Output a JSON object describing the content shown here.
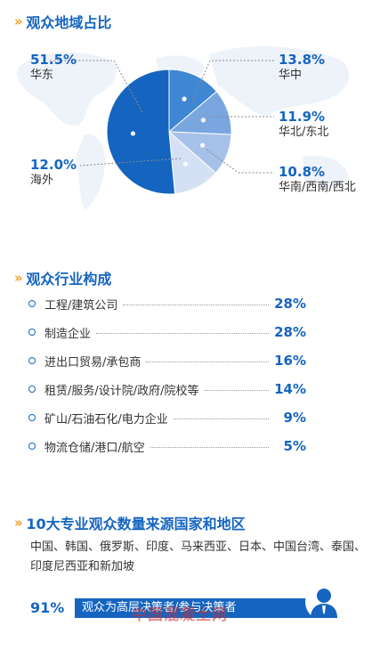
{
  "section1": {
    "title": "观众地域占比"
  },
  "section2": {
    "title": "观众行业构成"
  },
  "section3": {
    "title": "10大专业观众数量来源国家和地区",
    "countries": "中国、韩国、俄罗斯、印度、马来西亚、日本、中国台湾、泰国、印度尼西亚和新加坡",
    "dm_percent": "91%",
    "dm_text": "观众为高层决策者/参与决策者",
    "watermark": "中国混凝土网"
  },
  "colors": {
    "accent": "#1565c0",
    "chevron": "#f0a020"
  },
  "icons": {
    "chevron": "double-chevron-right-icon",
    "person": "person-icon",
    "bullet": "circle-bullet-icon"
  },
  "chart_data": [
    {
      "type": "pie",
      "title": "观众地域占比",
      "slices": [
        {
          "label": "华东",
          "value": 51.5,
          "display": "51.5%",
          "color": "#1565c0"
        },
        {
          "label": "华中",
          "value": 13.8,
          "display": "13.8%",
          "color": "#3f86d3"
        },
        {
          "label": "华北/东北",
          "value": 11.9,
          "display": "11.9%",
          "color": "#7aa6e0"
        },
        {
          "label": "华南/西南/西北",
          "value": 10.8,
          "display": "10.8%",
          "color": "#a6c1e8"
        },
        {
          "label": "海外",
          "value": 12.0,
          "display": "12.0%",
          "color": "#d4e1f4"
        }
      ]
    },
    {
      "type": "table",
      "title": "观众行业构成",
      "rows": [
        {
          "label": "工程/建筑公司",
          "value": 28,
          "display": "28%"
        },
        {
          "label": "制造企业",
          "value": 28,
          "display": "28%"
        },
        {
          "label": "进出口贸易/承包商",
          "value": 16,
          "display": "16%"
        },
        {
          "label": "租赁/服务/设计院/政府/院校等",
          "value": 14,
          "display": "14%"
        },
        {
          "label": "矿山/石油石化/电力企业",
          "value": 9,
          "display": "9%"
        },
        {
          "label": "物流仓储/港口/航空",
          "value": 5,
          "display": "5%"
        }
      ]
    }
  ]
}
